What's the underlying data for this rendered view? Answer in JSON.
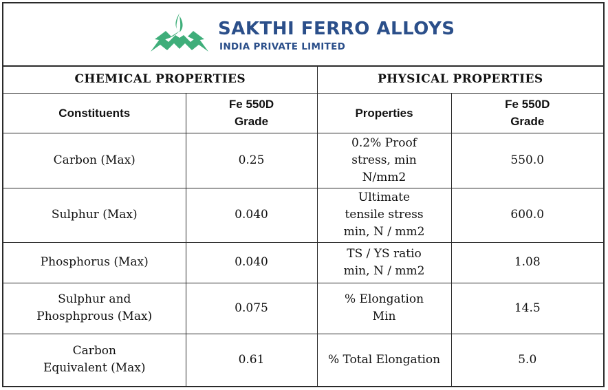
{
  "brand": {
    "name": "SAKTHI FERRO ALLOYS",
    "subtitle": "INDIA PRIVATE LIMITED",
    "logo_icon": "winged-flame-logo",
    "colors": {
      "logo_green": "#3fae7a",
      "brand_blue": "#2b4f8a"
    }
  },
  "sections": {
    "chemical": "CHEMICAL PROPERTIES",
    "physical": "PHYSICAL PROPERTIES"
  },
  "columns": {
    "constituents": "Constituents",
    "chem_grade": "Fe 550D\nGrade",
    "properties": "Properties",
    "phys_grade": "Fe 550D\nGrade"
  },
  "rows": [
    {
      "constituent": "Carbon (Max)",
      "chem_value": "0.25",
      "property": "0.2% Proof\nstress, min\nN/mm2",
      "phys_value": "550.0"
    },
    {
      "constituent": "Sulphur (Max)",
      "chem_value": "0.040",
      "property": "Ultimate\ntensile stress\nmin, N / mm2",
      "phys_value": "600.0"
    },
    {
      "constituent": "Phosphorus (Max)",
      "chem_value": "0.040",
      "property": "TS / YS ratio\nmin, N / mm2",
      "phys_value": "1.08"
    },
    {
      "constituent": "Sulphur and\nPhosphprous (Max)",
      "chem_value": "0.075",
      "property": "% Elongation\nMin",
      "phys_value": "14.5"
    },
    {
      "constituent": "Carbon\nEquivalent (Max)",
      "chem_value": "0.61",
      "property": "% Total Elongation",
      "phys_value": "5.0"
    }
  ]
}
